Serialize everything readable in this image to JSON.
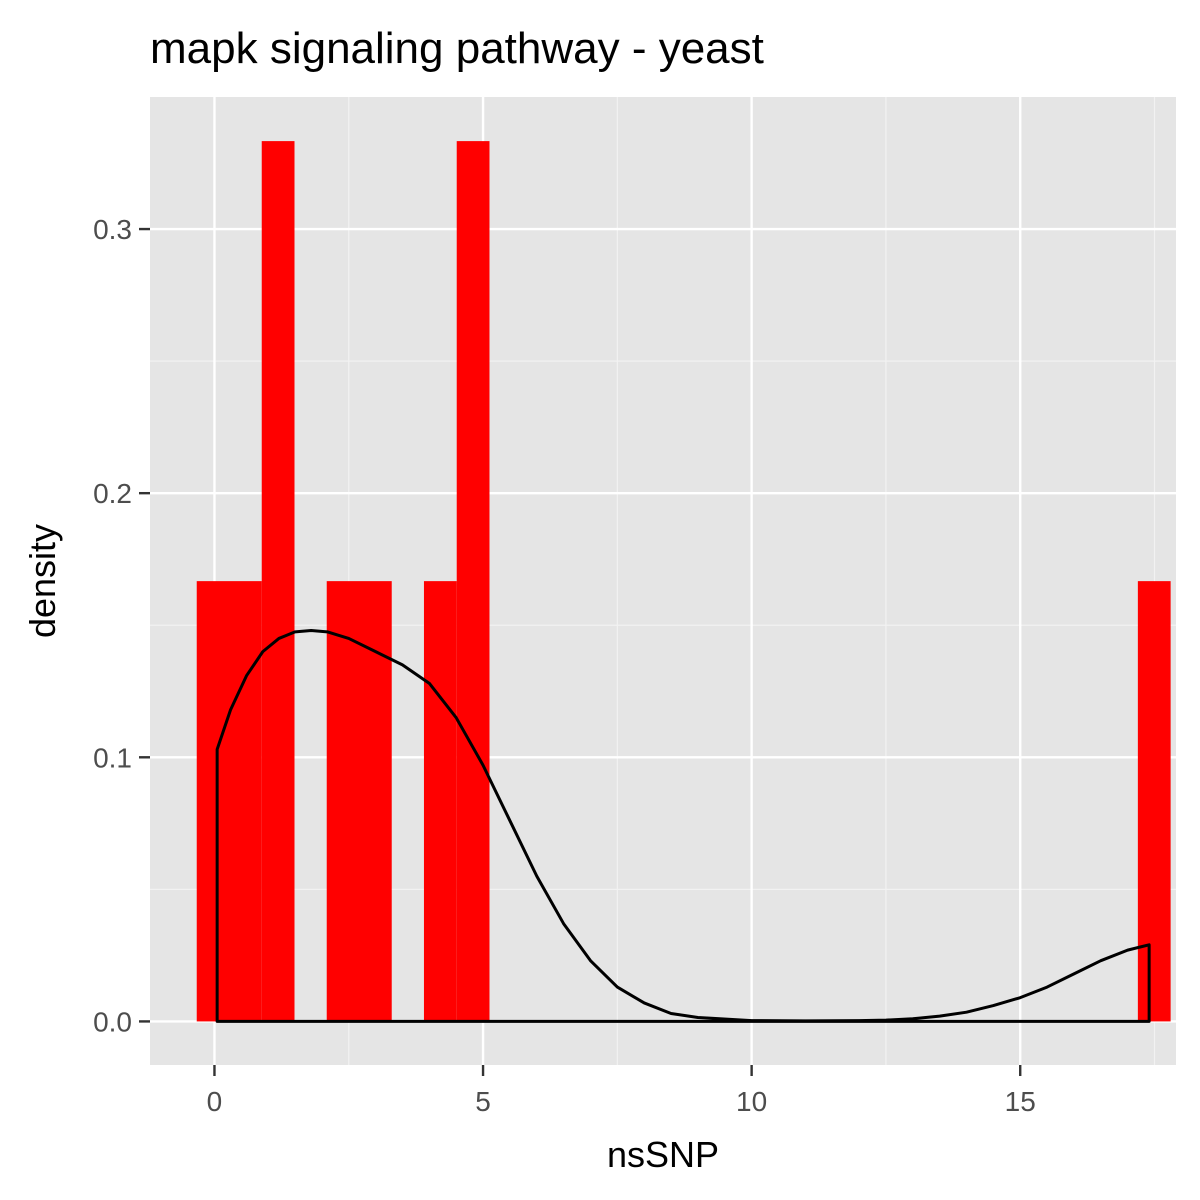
{
  "chart_data": {
    "type": "bar",
    "title": "mapk signaling pathway - yeast",
    "xlabel": "nsSNP",
    "ylabel": "density",
    "xlim": [
      -1.2,
      17.9
    ],
    "ylim": [
      -0.0165,
      0.35
    ],
    "x_ticks": [
      {
        "value": 0,
        "label": "0"
      },
      {
        "value": 5,
        "label": "5"
      },
      {
        "value": 10,
        "label": "10"
      },
      {
        "value": 15,
        "label": "15"
      }
    ],
    "y_ticks": [
      {
        "value": 0.0,
        "label": "0.0"
      },
      {
        "value": 0.1,
        "label": "0.1"
      },
      {
        "value": 0.2,
        "label": "0.2"
      },
      {
        "value": 0.3,
        "label": "0.3"
      }
    ],
    "grid": true,
    "histogram": {
      "fill_color": "#ff0000",
      "bins": [
        {
          "x0": -0.33,
          "x1": 0.88,
          "density": 0.1667
        },
        {
          "x0": 0.88,
          "x1": 1.49,
          "density": 0.3333
        },
        {
          "x0": 2.09,
          "x1": 3.3,
          "density": 0.1667
        },
        {
          "x0": 3.9,
          "x1": 4.51,
          "density": 0.1667
        },
        {
          "x0": 4.51,
          "x1": 5.12,
          "density": 0.3333
        },
        {
          "x0": 17.19,
          "x1": 17.8,
          "density": 0.1667
        }
      ]
    },
    "density_curve": {
      "color": "#000000",
      "x": [
        0.05,
        0.3,
        0.6,
        0.9,
        1.2,
        1.5,
        1.8,
        2.1,
        2.5,
        3.0,
        3.5,
        4.0,
        4.5,
        5.0,
        5.5,
        6.0,
        6.5,
        7.0,
        7.5,
        8.0,
        8.5,
        9.0,
        10.0,
        11.0,
        12.0,
        12.5,
        13.0,
        13.5,
        14.0,
        14.5,
        15.0,
        15.5,
        16.0,
        16.5,
        17.0,
        17.4
      ],
      "y": [
        0.103,
        0.118,
        0.131,
        0.14,
        0.145,
        0.1475,
        0.148,
        0.1475,
        0.145,
        0.14,
        0.135,
        0.128,
        0.115,
        0.097,
        0.076,
        0.055,
        0.037,
        0.023,
        0.013,
        0.007,
        0.003,
        0.0015,
        0.0003,
        0.0002,
        0.0003,
        0.0005,
        0.001,
        0.002,
        0.0035,
        0.006,
        0.009,
        0.013,
        0.018,
        0.023,
        0.027,
        0.029
      ]
    }
  }
}
